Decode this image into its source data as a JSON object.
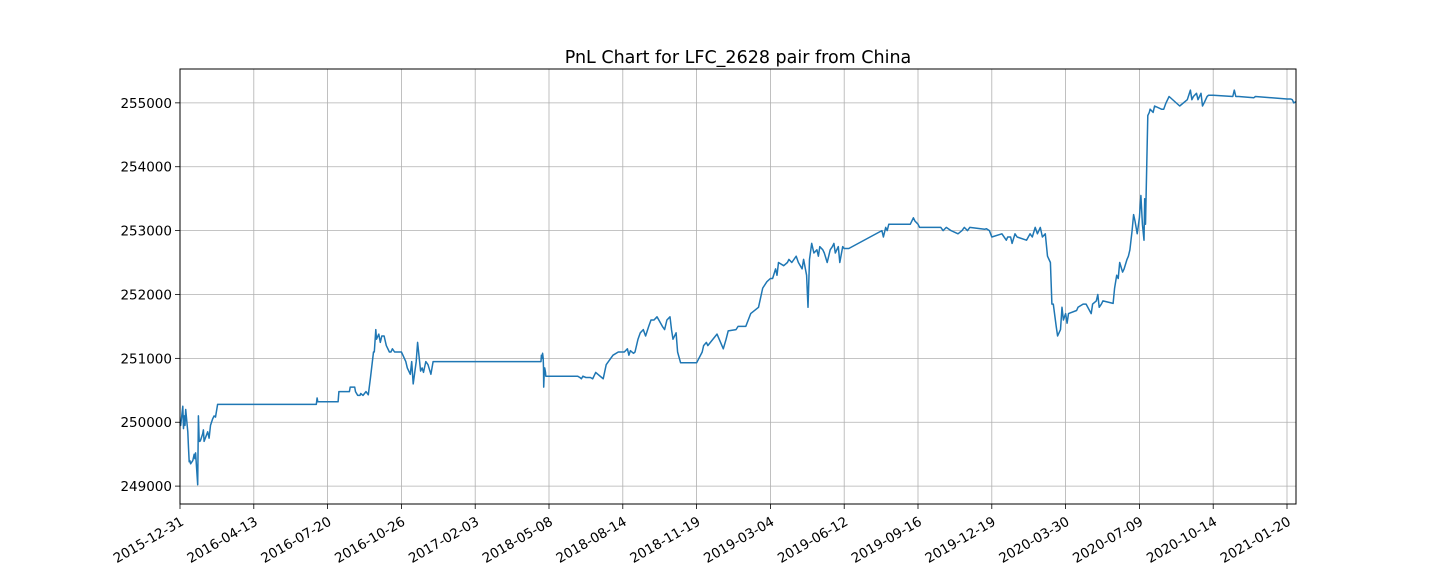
{
  "chart_data": {
    "type": "line",
    "title": "PnL Chart for LFC_2628 pair from China",
    "xlabel": "",
    "ylabel": "",
    "x_ticks": [
      "2015-12-31",
      "2016-04-13",
      "2016-07-20",
      "2016-10-26",
      "2017-02-03",
      "2018-05-08",
      "2018-08-14",
      "2018-11-19",
      "2019-03-04",
      "2019-06-12",
      "2019-09-16",
      "2019-12-19",
      "2020-03-30",
      "2020-07-09",
      "2020-10-14",
      "2021-01-20"
    ],
    "y_ticks": [
      "249000",
      "250000",
      "251000",
      "252000",
      "253000",
      "254000",
      "255000"
    ],
    "ylim": [
      248720,
      255530
    ],
    "grid": true,
    "line_color": "#1f77b4",
    "series": [
      {
        "x": [
          "2015-12-31",
          "2016-01-01",
          "2016-01-04",
          "2016-01-05",
          "2016-01-06",
          "2016-01-07",
          "2016-01-08",
          "2016-01-11",
          "2016-01-12",
          "2016-01-13",
          "2016-01-14",
          "2016-01-15",
          "2016-01-18",
          "2016-01-19",
          "2016-01-20",
          "2016-01-21",
          "2016-01-22",
          "2016-01-25",
          "2016-01-26",
          "2016-01-27",
          "2016-01-28",
          "2016-01-29",
          "2016-02-01",
          "2016-02-02",
          "2016-02-03",
          "2016-02-08",
          "2016-02-10",
          "2016-02-12",
          "2016-02-15",
          "2016-02-17",
          "2016-02-19",
          "2016-02-22",
          "2016-02-24",
          "2016-02-26",
          "2016-03-01",
          "2016-03-03",
          "2016-04-13",
          "2016-07-05",
          "2016-07-06",
          "2016-07-07",
          "2016-07-20",
          "2016-08-03",
          "2016-08-04",
          "2016-08-05",
          "2016-08-18",
          "2016-08-19",
          "2016-08-22",
          "2016-08-25",
          "2016-08-26",
          "2016-08-29",
          "2016-09-01",
          "2016-09-02",
          "2016-09-05",
          "2016-09-09",
          "2016-09-12",
          "2016-09-15",
          "2016-09-19",
          "2016-09-20",
          "2016-09-22",
          "2016-09-23",
          "2016-09-26",
          "2016-09-28",
          "2016-09-30",
          "2016-10-03",
          "2016-10-06",
          "2016-10-10",
          "2016-10-12",
          "2016-10-14",
          "2016-10-17",
          "2016-10-19",
          "2016-10-26",
          "2016-10-28",
          "2016-11-01",
          "2016-11-03",
          "2016-11-07",
          "2016-11-09",
          "2016-11-11",
          "2016-11-15",
          "2016-11-17",
          "2016-11-21",
          "2016-11-23",
          "2016-11-25",
          "2016-11-28",
          "2016-12-01",
          "2016-12-05",
          "2016-12-08",
          "2016-12-12",
          "2017-01-15",
          "2017-01-20",
          "2018-03-19",
          "2018-03-22",
          "2018-03-26",
          "2018-03-29",
          "2018-04-02",
          "2018-04-04",
          "2018-04-05",
          "2018-04-09",
          "2018-04-11",
          "2018-04-16",
          "2018-04-18",
          "2018-04-23",
          "2018-05-08",
          "2018-06-15",
          "2018-06-18",
          "2018-06-20",
          "2018-06-22",
          "2018-06-26",
          "2018-06-28",
          "2018-07-02",
          "2018-07-05",
          "2018-07-09",
          "2018-07-12",
          "2018-07-17",
          "2018-07-19",
          "2018-07-23",
          "2018-08-01",
          "2018-08-08",
          "2018-08-14",
          "2018-08-16",
          "2018-08-20",
          "2018-08-22",
          "2018-08-24",
          "2018-08-28",
          "2018-08-30",
          "2018-09-03",
          "2018-09-06",
          "2018-09-10",
          "2018-09-13",
          "2018-09-17",
          "2018-09-20",
          "2018-09-24",
          "2018-09-28",
          "2018-10-05",
          "2018-10-08",
          "2018-10-11",
          "2018-10-15",
          "2018-10-17",
          "2018-10-19",
          "2018-10-23",
          "2018-10-25",
          "2018-10-29",
          "2018-11-01",
          "2018-11-19",
          "2018-11-27",
          "2018-11-29",
          "2018-12-03",
          "2018-12-05",
          "2018-12-18",
          "2018-12-27",
          "2018-12-31",
          "2019-01-03",
          "2019-01-14",
          "2019-01-17",
          "2019-01-21",
          "2019-01-28",
          "2019-02-04",
          "2019-02-15",
          "2019-02-21",
          "2019-02-27",
          "2019-03-04",
          "2019-03-07",
          "2019-03-11",
          "2019-03-13",
          "2019-03-15",
          "2019-03-22",
          "2019-03-27",
          "2019-03-29",
          "2019-04-02",
          "2019-04-08",
          "2019-04-11",
          "2019-04-16",
          "2019-04-18",
          "2019-04-22",
          "2019-04-24",
          "2019-04-26",
          "2019-04-29",
          "2019-05-02",
          "2019-05-06",
          "2019-05-08",
          "2019-05-10",
          "2019-05-14",
          "2019-05-16",
          "2019-05-20",
          "2019-05-22",
          "2019-05-24",
          "2019-05-27",
          "2019-05-29",
          "2019-05-31",
          "2019-06-04",
          "2019-06-06",
          "2019-06-10",
          "2019-06-12",
          "2019-06-14",
          "2019-06-18",
          "2019-07-31",
          "2019-08-02",
          "2019-08-05",
          "2019-08-07",
          "2019-08-09",
          "2019-08-13",
          "2019-08-15",
          "2019-09-06",
          "2019-09-10",
          "2019-09-12",
          "2019-09-16",
          "2019-09-18",
          "2019-09-20",
          "2019-10-15",
          "2019-10-18",
          "2019-10-22",
          "2019-10-28",
          "2019-11-06",
          "2019-11-11",
          "2019-11-14",
          "2019-11-18",
          "2019-11-21",
          "2019-12-10",
          "2019-12-12",
          "2019-12-16",
          "2019-12-19",
          "2020-01-02",
          "2020-01-08",
          "2020-01-10",
          "2020-01-14",
          "2020-01-16",
          "2020-01-20",
          "2020-01-23",
          "2020-02-05",
          "2020-02-10",
          "2020-02-13",
          "2020-02-17",
          "2020-02-20",
          "2020-02-24",
          "2020-02-27",
          "2020-03-02",
          "2020-03-05",
          "2020-03-09",
          "2020-03-11",
          "2020-03-13",
          "2020-03-17",
          "2020-03-19",
          "2020-03-23",
          "2020-03-25",
          "2020-03-27",
          "2020-03-30",
          "2020-04-01",
          "2020-04-03",
          "2020-04-14",
          "2020-04-16",
          "2020-04-23",
          "2020-04-27",
          "2020-05-04",
          "2020-05-06",
          "2020-05-11",
          "2020-05-13",
          "2020-05-15",
          "2020-05-18",
          "2020-05-20",
          "2020-06-03",
          "2020-06-05",
          "2020-06-08",
          "2020-06-10",
          "2020-06-12",
          "2020-06-16",
          "2020-06-18",
          "2020-06-22",
          "2020-06-24",
          "2020-06-26",
          "2020-06-29",
          "2020-07-01",
          "2020-07-03",
          "2020-07-06",
          "2020-07-09",
          "2020-07-11",
          "2020-07-13",
          "2020-07-15",
          "2020-07-16",
          "2020-07-17",
          "2020-07-20",
          "2020-07-22",
          "2020-07-23",
          "2020-07-27",
          "2020-07-29",
          "2020-08-07",
          "2020-08-10",
          "2020-08-13",
          "2020-08-17",
          "2020-08-31",
          "2020-09-10",
          "2020-09-14",
          "2020-09-16",
          "2020-09-18",
          "2020-09-22",
          "2020-09-24",
          "2020-09-28",
          "2020-09-30",
          "2020-10-02",
          "2020-10-06",
          "2020-10-08",
          "2020-10-14",
          "2020-11-09",
          "2020-11-11",
          "2020-11-13",
          "2020-11-17",
          "2020-12-07",
          "2020-12-09",
          "2021-01-20",
          "2021-01-25",
          "2021-01-27",
          "2021-01-29",
          "2021-02-01"
        ],
        "y": [
          250000,
          249950,
          250250,
          249900,
          250100,
          249950,
          250200,
          249850,
          249600,
          249380,
          249400,
          249350,
          249400,
          249450,
          249500,
          249430,
          249520,
          249020,
          250100,
          249700,
          249700,
          249720,
          249820,
          249880,
          249700,
          249850,
          249750,
          249950,
          250050,
          250100,
          250080,
          250280,
          250280,
          250280,
          250280,
          250280,
          250280,
          250280,
          250380,
          250320,
          250320,
          250320,
          250480,
          250480,
          250480,
          250550,
          250550,
          250550,
          250480,
          250420,
          250420,
          250450,
          250420,
          250480,
          250430,
          250700,
          251100,
          251100,
          251450,
          251300,
          251380,
          251250,
          251350,
          251350,
          251200,
          251100,
          251100,
          251150,
          251100,
          251100,
          251100,
          251050,
          250950,
          250850,
          250750,
          250950,
          250600,
          250950,
          251250,
          250800,
          250850,
          250780,
          250950,
          250900,
          250750,
          250950,
          250950,
          250950,
          250950,
          250950,
          251050,
          251000,
          251080,
          251000,
          250850,
          250550,
          250800,
          250850,
          250780,
          250720,
          250720,
          250720,
          250720,
          250700,
          250680,
          250720,
          250700,
          250700,
          250700,
          250680,
          250780,
          250750,
          250700,
          250680,
          250900,
          251050,
          251100,
          251100,
          251100,
          251150,
          251050,
          251120,
          251080,
          251100,
          251300,
          251400,
          251450,
          251350,
          251500,
          251600,
          251600,
          251650,
          251500,
          251450,
          251600,
          251650,
          251450,
          251300,
          251400,
          251100,
          250930,
          250930,
          250930,
          251100,
          251200,
          251250,
          251200,
          251380,
          251150,
          251300,
          251430,
          251450,
          251500,
          251500,
          251500,
          251700,
          251800,
          252100,
          252200,
          252250,
          252250,
          252400,
          252300,
          252500,
          252450,
          252500,
          252550,
          252500,
          252600,
          252500,
          252400,
          252550,
          252300,
          251800,
          252550,
          252800,
          252650,
          252700,
          252600,
          252750,
          252700,
          252650,
          252500,
          252600,
          252700,
          252750,
          252800,
          252650,
          252750,
          252500,
          252750,
          252720,
          252720,
          252720,
          253000,
          252900,
          253050,
          253000,
          253100,
          253100,
          253100,
          253100,
          253200,
          253150,
          253100,
          253050,
          253050,
          253050,
          253000,
          253050,
          253000,
          252950,
          253000,
          253050,
          253000,
          253050,
          253020,
          253030,
          253000,
          252900,
          252950,
          252850,
          252900,
          252900,
          252800,
          252950,
          252900,
          252850,
          252950,
          252900,
          253050,
          252950,
          253050,
          252900,
          252950,
          252600,
          252500,
          251850,
          251850,
          251500,
          251350,
          251450,
          251800,
          251600,
          251700,
          251550,
          251700,
          251750,
          251800,
          251850,
          251850,
          251700,
          251850,
          251900,
          252000,
          251800,
          251850,
          251900,
          251860,
          252100,
          252300,
          252250,
          252500,
          252350,
          252400,
          252550,
          252600,
          252700,
          253000,
          253250,
          253150,
          252950,
          253200,
          253550,
          253100,
          252850,
          253500,
          253100,
          254800,
          254850,
          254900,
          254850,
          254950,
          254900,
          254900,
          255000,
          255100,
          254950,
          255050,
          255200,
          255050,
          255100,
          255150,
          255050,
          255150,
          254950,
          255000,
          255100,
          255120,
          255120,
          255100,
          255200,
          255100,
          255100,
          255080,
          255100,
          255060,
          255060,
          255050,
          255000,
          255020
        ]
      }
    ]
  }
}
